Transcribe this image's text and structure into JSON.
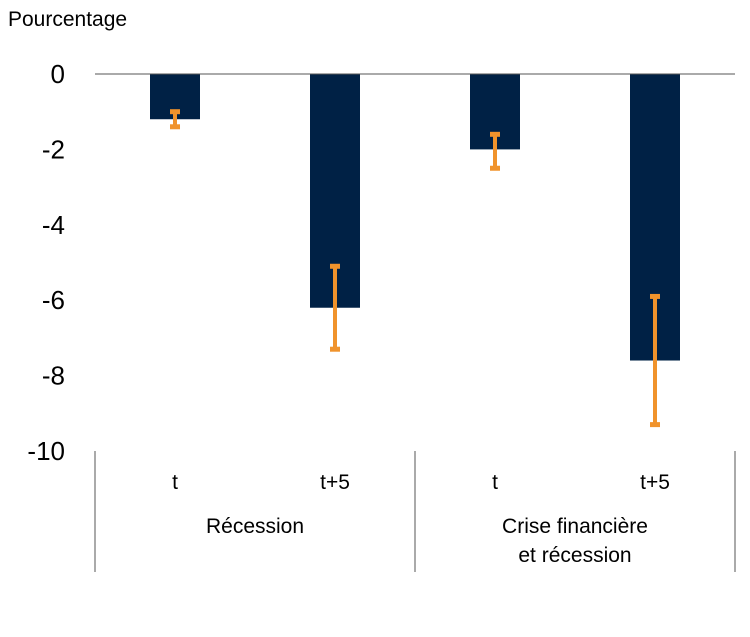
{
  "chart_data": {
    "type": "bar",
    "title": "",
    "ylabel": "Pourcentage",
    "xlabel": "",
    "ylim": [
      -10,
      0
    ],
    "yticks": [
      0,
      -2,
      -4,
      -6,
      -8,
      -10
    ],
    "ytick_labels": [
      "0",
      "-2",
      "-4",
      "-6",
      "-8",
      "-10"
    ],
    "groups": [
      {
        "label": [
          "Récession"
        ],
        "categories": [
          "t",
          "t+5"
        ]
      },
      {
        "label": [
          "Crise financière",
          "et récession"
        ],
        "categories": [
          "t",
          "t+5"
        ]
      }
    ],
    "categories": [
      "t",
      "t+5",
      "t",
      "t+5"
    ],
    "values": [
      -1.2,
      -6.2,
      -2.0,
      -7.6
    ],
    "error_low": [
      -1.4,
      -7.3,
      -2.5,
      -9.3
    ],
    "error_high": [
      -1.0,
      -5.1,
      -1.6,
      -5.9
    ],
    "colors": {
      "bar": "#002145",
      "error": "#f0932c",
      "axis": "#000000"
    }
  }
}
